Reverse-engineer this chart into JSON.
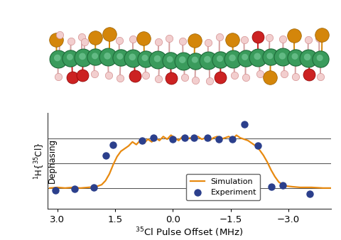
{
  "xlabel": "$^{35}$Cl Pulse Offset (MHz)",
  "ylabel": "$^{1}$H{$^{35}$Cl}\nDephasing",
  "xlim": [
    3.25,
    -4.1
  ],
  "ylim_min": -0.18,
  "ylim_max": 1.25,
  "xticks": [
    3.0,
    1.5,
    0.0,
    -1.5,
    -3.0
  ],
  "xticklabels": [
    "3.0",
    "1.5",
    "0.0",
    "−1.5",
    "−3.0"
  ],
  "sim_x": [
    3.2,
    3.0,
    2.8,
    2.6,
    2.4,
    2.2,
    2.0,
    1.85,
    1.75,
    1.65,
    1.55,
    1.45,
    1.35,
    1.25,
    1.15,
    1.05,
    0.95,
    0.85,
    0.75,
    0.65,
    0.55,
    0.45,
    0.35,
    0.25,
    0.15,
    0.05,
    -0.05,
    -0.15,
    -0.25,
    -0.35,
    -0.45,
    -0.55,
    -0.65,
    -0.75,
    -0.85,
    -0.95,
    -1.05,
    -1.15,
    -1.25,
    -1.35,
    -1.45,
    -1.55,
    -1.65,
    -1.75,
    -1.85,
    -1.95,
    -2.05,
    -2.15,
    -2.25,
    -2.35,
    -2.45,
    -2.55,
    -2.65,
    -2.75,
    -2.85,
    -2.95,
    -3.1,
    -3.3,
    -3.6,
    -3.9,
    -4.1
  ],
  "sim_y": [
    0.13,
    0.14,
    0.13,
    0.14,
    0.13,
    0.14,
    0.15,
    0.18,
    0.24,
    0.34,
    0.48,
    0.6,
    0.68,
    0.72,
    0.76,
    0.82,
    0.78,
    0.84,
    0.8,
    0.86,
    0.82,
    0.88,
    0.84,
    0.9,
    0.86,
    0.92,
    0.88,
    0.84,
    0.9,
    0.86,
    0.88,
    0.84,
    0.9,
    0.86,
    0.88,
    0.84,
    0.88,
    0.9,
    0.86,
    0.88,
    0.9,
    0.86,
    0.92,
    0.88,
    0.86,
    0.84,
    0.8,
    0.76,
    0.7,
    0.62,
    0.52,
    0.4,
    0.3,
    0.22,
    0.18,
    0.16,
    0.15,
    0.14,
    0.14,
    0.13,
    0.13
  ],
  "exp_x": [
    3.05,
    2.55,
    2.05,
    1.75,
    1.55,
    0.8,
    0.5,
    0.0,
    -0.3,
    -0.55,
    -0.9,
    -1.2,
    -1.55,
    -1.85,
    -2.2,
    -2.55,
    -2.85,
    -3.55
  ],
  "exp_y": [
    0.1,
    0.12,
    0.14,
    0.62,
    0.78,
    0.84,
    0.88,
    0.86,
    0.88,
    0.88,
    0.88,
    0.86,
    0.86,
    1.08,
    0.76,
    0.15,
    0.17,
    0.04
  ],
  "sim_color": "#E88A10",
  "exp_color": "#2B3F8C",
  "legend_sim": "Simulation",
  "legend_exp": "Experiment",
  "hlines_y": [
    0.13,
    0.5,
    0.87
  ],
  "bg_color": "#ffffff",
  "linewidth": 1.6,
  "markersize": 6.5,
  "mol_bg": "#ffffff"
}
